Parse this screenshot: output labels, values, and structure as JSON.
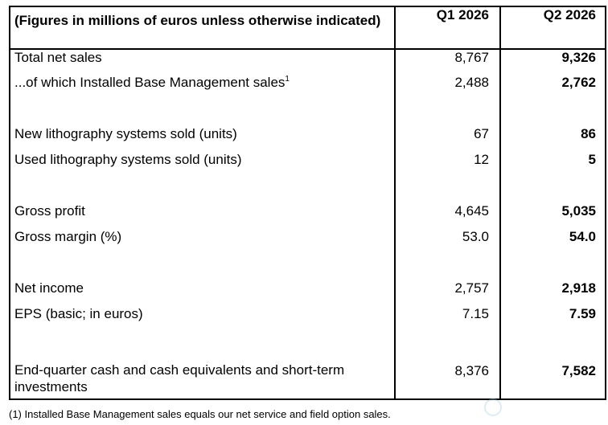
{
  "table": {
    "header": {
      "label": "(Figures in millions of euros unless otherwise indicated)",
      "q1": "Q1 2026",
      "q2": "Q2 2026"
    },
    "rows": [
      {
        "label": "Total net sales",
        "q1": "8,767",
        "q2": "9,326"
      },
      {
        "label": "...of which Installed Base Management sales",
        "sup": "1",
        "q1": "2,488",
        "q2": "2,762"
      },
      {
        "label": "New lithography systems sold (units)",
        "q1": "67",
        "q2": "86"
      },
      {
        "label": "Used lithography systems sold (units)",
        "q1": "12",
        "q2": "5"
      },
      {
        "label": "Gross profit",
        "q1": "4,645",
        "q2": "5,035"
      },
      {
        "label": "Gross margin (%)",
        "q1": "53.0",
        "q2": "54.0"
      },
      {
        "label": "Net income",
        "q1": "2,757",
        "q2": "2,918"
      },
      {
        "label": "EPS (basic; in euros)",
        "q1": "7.15",
        "q2": "7.59"
      },
      {
        "label": "End-quarter cash and cash equivalents and short-term investments",
        "q1": "8,376",
        "q2": "7,582"
      }
    ]
  },
  "footnote": "(1) Installed Base Management sales equals our net service and field option sales.",
  "watermark": {
    "icon": "globe-logo-icon"
  }
}
